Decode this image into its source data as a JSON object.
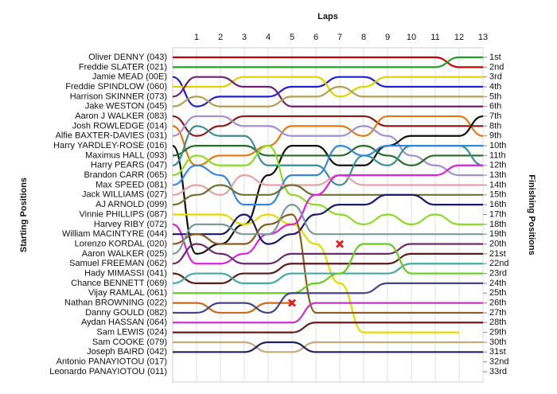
{
  "chart_data": {
    "type": "line",
    "title": "Laps",
    "ylabel": "Starting Positions",
    "y2label": "Finishing Positions",
    "x": [
      0,
      1,
      2,
      3,
      4,
      5,
      6,
      7,
      8,
      9,
      10,
      11,
      12,
      13
    ],
    "xlim": [
      0,
      13
    ],
    "xticks": [
      1,
      2,
      3,
      4,
      5,
      6,
      7,
      8,
      9,
      10,
      11,
      12,
      13
    ],
    "ylim": [
      1,
      33
    ],
    "y_inverted": true,
    "grid": true,
    "yticks": [
      {
        "value": 1,
        "label": "Oliver DENNY (043)"
      },
      {
        "value": 2,
        "label": "Freddie SLATER (021)"
      },
      {
        "value": 3,
        "label": "Jamie MEAD (00E)"
      },
      {
        "value": 4,
        "label": "Freddie SPINDLOW (060)"
      },
      {
        "value": 5,
        "label": "Harrison SKINNER (073)"
      },
      {
        "value": 6,
        "label": "Jake WESTON (045)"
      },
      {
        "value": 7,
        "label": "Aaron J WALKER (083)"
      },
      {
        "value": 8,
        "label": "Josh ROWLEDGE (014)"
      },
      {
        "value": 9,
        "label": "Alfie BAXTER-DAVIES (031)"
      },
      {
        "value": 10,
        "label": "Harry YARDLEY-ROSE (016)"
      },
      {
        "value": 11,
        "label": "Maximus HALL (093)"
      },
      {
        "value": 12,
        "label": "Harry PEARS (047)"
      },
      {
        "value": 13,
        "label": "Brandon CARR (065)"
      },
      {
        "value": 14,
        "label": "Max SPEED (081)"
      },
      {
        "value": 15,
        "label": "Jack WILLIAMS (027)"
      },
      {
        "value": 16,
        "label": "AJ ARNOLD (099)"
      },
      {
        "value": 17,
        "label": "Vinnie PHILLIPS (087)"
      },
      {
        "value": 18,
        "label": "Harvey RIBY (072)"
      },
      {
        "value": 19,
        "label": "William MACINTYRE (044)"
      },
      {
        "value": 20,
        "label": "Lorenzo KORDAL (020)"
      },
      {
        "value": 21,
        "label": "Aaron WALKER (025)"
      },
      {
        "value": 22,
        "label": "Samuel FREEMAN (062)"
      },
      {
        "value": 23,
        "label": "Hady MIMASSI (041)"
      },
      {
        "value": 24,
        "label": "Chance BENNETT (069)"
      },
      {
        "value": 25,
        "label": "Vijay RAMLAL (061)"
      },
      {
        "value": 26,
        "label": "Nathan BROWNING (022)"
      },
      {
        "value": 27,
        "label": "Danny GOULD (082)"
      },
      {
        "value": 28,
        "label": "Aydan HASSAN (064)"
      },
      {
        "value": 29,
        "label": "Sam LEWIS (024)"
      },
      {
        "value": 30,
        "label": "Sam COOKE (079)"
      },
      {
        "value": 31,
        "label": "Joseph BAIRD (042)"
      },
      {
        "value": 32,
        "label": "Antonio PANAYIOTOU (017)"
      },
      {
        "value": 33,
        "label": "Leonardo PANAYIOTOU (011)"
      }
    ],
    "y2ticks": [
      {
        "value": 1,
        "label": "1st"
      },
      {
        "value": 2,
        "label": "2nd"
      },
      {
        "value": 3,
        "label": "3rd"
      },
      {
        "value": 4,
        "label": "4th"
      },
      {
        "value": 5,
        "label": "5th"
      },
      {
        "value": 6,
        "label": "6th"
      },
      {
        "value": 7,
        "label": "7th"
      },
      {
        "value": 8,
        "label": "8th"
      },
      {
        "value": 9,
        "label": "9th"
      },
      {
        "value": 10,
        "label": "10th"
      },
      {
        "value": 11,
        "label": "11th"
      },
      {
        "value": 12,
        "label": "12th"
      },
      {
        "value": 13,
        "label": "13th"
      },
      {
        "value": 14,
        "label": "14th"
      },
      {
        "value": 15,
        "label": "15th"
      },
      {
        "value": 16,
        "label": "16th"
      },
      {
        "value": 17,
        "label": "17th"
      },
      {
        "value": 18,
        "label": "18th"
      },
      {
        "value": 19,
        "label": "19th"
      },
      {
        "value": 20,
        "label": "20th"
      },
      {
        "value": 21,
        "label": "21st"
      },
      {
        "value": 22,
        "label": "22nd"
      },
      {
        "value": 23,
        "label": "23rd"
      },
      {
        "value": 24,
        "label": "24th"
      },
      {
        "value": 25,
        "label": "25th"
      },
      {
        "value": 26,
        "label": "26th"
      },
      {
        "value": 27,
        "label": "27th"
      },
      {
        "value": 28,
        "label": "28th"
      },
      {
        "value": 29,
        "label": "29th"
      },
      {
        "value": 30,
        "label": "30th"
      },
      {
        "value": 31,
        "label": "31st"
      },
      {
        "value": 32,
        "label": "32nd"
      },
      {
        "value": 33,
        "label": "33rd"
      }
    ],
    "series": [
      {
        "color": "#cc0000",
        "values": [
          1,
          1,
          1,
          1,
          1,
          1,
          1,
          1,
          1,
          1,
          1,
          1,
          2,
          2
        ]
      },
      {
        "color": "#22a022",
        "values": [
          2,
          2,
          2,
          2,
          2,
          2,
          2,
          2,
          2,
          2,
          2,
          2,
          1,
          1
        ]
      },
      {
        "color": "#2020cc",
        "values": [
          3,
          6,
          5,
          5,
          5,
          4,
          4,
          3,
          3,
          4,
          4,
          4,
          4,
          4
        ]
      },
      {
        "color": "#e0d000",
        "values": [
          4,
          4,
          4,
          3,
          3,
          3,
          3,
          5,
          4,
          3,
          3,
          3,
          3,
          3
        ]
      },
      {
        "color": "#702070",
        "values": [
          5,
          3,
          3,
          4,
          4,
          6,
          6,
          6,
          6,
          6,
          6,
          6,
          6,
          6
        ]
      },
      {
        "color": "#b0a050",
        "values": [
          6,
          5,
          6,
          6,
          6,
          5,
          5,
          4,
          5,
          5,
          5,
          5,
          5,
          5
        ]
      },
      {
        "color": "#8b1a1a",
        "values": [
          7,
          9,
          8,
          7,
          7,
          7,
          7,
          7,
          7,
          8,
          8,
          8,
          8,
          8
        ]
      },
      {
        "color": "#e07a10",
        "values": [
          8,
          12,
          11,
          11,
          10,
          8,
          8,
          8,
          9,
          7,
          7,
          7,
          7,
          9
        ]
      },
      {
        "color": "#a090d0",
        "values": [
          9,
          7,
          7,
          8,
          8,
          9,
          9,
          9,
          8,
          9,
          11,
          12,
          13,
          13
        ]
      },
      {
        "color": "#111111",
        "values": [
          10,
          21,
          20,
          18,
          13,
          10,
          10,
          12,
          12,
          10,
          9,
          9,
          9,
          7
        ]
      },
      {
        "color": "#2a6a2a",
        "values": [
          11,
          10,
          10,
          10,
          11,
          11,
          11,
          11,
          10,
          11,
          12,
          11,
          11,
          11
        ]
      },
      {
        "color": "#3a9090",
        "values": [
          12,
          8,
          9,
          9,
          12,
          12,
          12,
          14,
          11,
          12,
          10,
          10,
          10,
          12
        ]
      },
      {
        "color": "#88dd22",
        "values": [
          13,
          11,
          12,
          12,
          10,
          15,
          16,
          17,
          18,
          17,
          18,
          17,
          18,
          18
        ]
      },
      {
        "color": "#3388dd",
        "values": [
          14,
          12,
          13,
          16,
          16,
          13,
          13,
          10,
          11,
          10,
          10,
          10,
          10,
          10
        ]
      },
      {
        "color": "#e8a0a0",
        "values": [
          15,
          14,
          15,
          13,
          14,
          14,
          14,
          13,
          14,
          14,
          14,
          14,
          14,
          14
        ]
      },
      {
        "color": "#707030",
        "values": [
          16,
          15,
          14,
          15,
          15,
          14,
          15,
          15,
          15,
          15,
          15,
          15,
          15,
          15
        ]
      },
      {
        "color": "#e8d800",
        "values": [
          17,
          17,
          17,
          18,
          17,
          18,
          20,
          24,
          29,
          29,
          29,
          29,
          29,
          null
        ]
      },
      {
        "color": "#dd22dd",
        "values": [
          18,
          22,
          22,
          21,
          19,
          18,
          15,
          13,
          13,
          13,
          13,
          13,
          12,
          12
        ]
      },
      {
        "color": "#1a1a6a",
        "values": [
          19,
          19,
          19,
          17,
          20,
          19,
          17,
          16,
          16,
          15,
          15,
          16,
          16,
          16
        ]
      },
      {
        "color": "#8a5a20",
        "values": [
          20,
          19,
          20,
          20,
          18,
          17,
          27,
          27,
          27,
          27,
          27,
          27,
          27,
          27
        ]
      },
      {
        "color": "#7a9a9a",
        "values": [
          21,
          18,
          18,
          19,
          19,
          16,
          19,
          19,
          19,
          19,
          19,
          19,
          19,
          19
        ]
      },
      {
        "color": "#6a2a6a",
        "values": [
          22,
          20,
          21,
          22,
          22,
          21,
          21,
          21,
          21,
          21,
          20,
          20,
          20,
          20
        ]
      },
      {
        "color": "#5a1a1a",
        "values": [
          23,
          24,
          24,
          23,
          23,
          22,
          22,
          22,
          22,
          22,
          21,
          21,
          21,
          21
        ]
      },
      {
        "color": "#44aaaa",
        "values": [
          24,
          23,
          23,
          24,
          24,
          23,
          23,
          23,
          23,
          23,
          22,
          22,
          22,
          22
        ]
      },
      {
        "color": "#66cc22",
        "values": [
          25,
          25,
          25,
          25,
          25,
          25,
          24,
          23,
          20,
          20,
          23,
          23,
          23,
          23
        ]
      },
      {
        "color": "#cc6a1a",
        "values": [
          26,
          26,
          27,
          27,
          26,
          26,
          null,
          null,
          null,
          null,
          null,
          null,
          null,
          null
        ]
      },
      {
        "color": "#444488",
        "values": [
          27,
          27,
          26,
          26,
          27,
          25,
          25,
          25,
          25,
          24,
          24,
          24,
          24,
          24
        ]
      },
      {
        "color": "#cc33cc",
        "values": [
          28,
          28,
          28,
          28,
          28,
          28,
          26,
          26,
          26,
          26,
          26,
          26,
          26,
          26
        ]
      },
      {
        "color": "#6a1a1a",
        "values": [
          29,
          29,
          29,
          29,
          29,
          29,
          28,
          28,
          28,
          28,
          28,
          28,
          28,
          28
        ]
      },
      {
        "color": "#c8a878",
        "values": [
          30,
          30,
          30,
          30,
          31,
          31,
          30,
          30,
          30,
          30,
          30,
          30,
          30,
          30
        ]
      },
      {
        "color": "#22225a",
        "values": [
          31,
          31,
          31,
          31,
          30,
          30,
          31,
          31,
          31,
          31,
          31,
          31,
          31,
          31
        ]
      }
    ],
    "markers": [
      {
        "x": 5,
        "y": 26
      },
      {
        "x": 7,
        "y": 20
      }
    ]
  }
}
